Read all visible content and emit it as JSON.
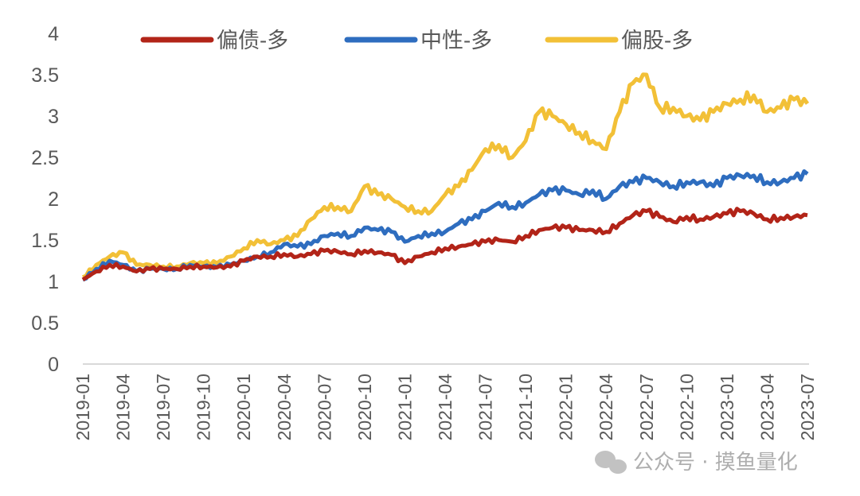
{
  "chart_data": {
    "type": "line",
    "title": "",
    "xlabel": "",
    "ylabel": "",
    "ylim": [
      0,
      4
    ],
    "yticks": [
      "0",
      "0.5",
      "1",
      "1.5",
      "2",
      "2.5",
      "3",
      "3.5",
      "4"
    ],
    "x_tick_labels": [
      "2019-01",
      "2019-04",
      "2019-07",
      "2019-10",
      "2020-01",
      "2020-04",
      "2020-07",
      "2020-10",
      "2021-01",
      "2021-04",
      "2021-07",
      "2021-10",
      "2022-01",
      "2022-04",
      "2022-07",
      "2022-10",
      "2023-01",
      "2023-04",
      "2023-07"
    ],
    "x_start": "2019-01",
    "x_frequency": "monthly",
    "grid": false,
    "legend_position": "top",
    "series": [
      {
        "name": "偏债-多",
        "color": "#B22418",
        "values": [
          1.02,
          1.12,
          1.2,
          1.18,
          1.12,
          1.15,
          1.15,
          1.15,
          1.18,
          1.18,
          1.17,
          1.18,
          1.25,
          1.3,
          1.3,
          1.33,
          1.3,
          1.33,
          1.37,
          1.36,
          1.33,
          1.37,
          1.35,
          1.32,
          1.22,
          1.3,
          1.35,
          1.4,
          1.42,
          1.45,
          1.48,
          1.5,
          1.48,
          1.55,
          1.62,
          1.65,
          1.65,
          1.62,
          1.62,
          1.6,
          1.7,
          1.8,
          1.85,
          1.78,
          1.72,
          1.78,
          1.75,
          1.78,
          1.82,
          1.85,
          1.82,
          1.75,
          1.77,
          1.78,
          1.8
        ]
      },
      {
        "name": "中性-多",
        "color": "#2E6DBF",
        "values": [
          1.02,
          1.15,
          1.25,
          1.2,
          1.12,
          1.15,
          1.15,
          1.15,
          1.2,
          1.18,
          1.17,
          1.2,
          1.25,
          1.3,
          1.35,
          1.45,
          1.42,
          1.45,
          1.55,
          1.58,
          1.55,
          1.65,
          1.62,
          1.6,
          1.48,
          1.55,
          1.58,
          1.6,
          1.7,
          1.75,
          1.85,
          1.95,
          1.9,
          1.95,
          2.05,
          2.1,
          2.1,
          2.05,
          2.1,
          2.0,
          2.15,
          2.2,
          2.25,
          2.2,
          2.15,
          2.2,
          2.2,
          2.15,
          2.25,
          2.28,
          2.28,
          2.2,
          2.2,
          2.25,
          2.3
        ]
      },
      {
        "name": "偏股-多",
        "color": "#F2C037",
        "values": [
          1.05,
          1.2,
          1.3,
          1.35,
          1.2,
          1.2,
          1.18,
          1.18,
          1.22,
          1.22,
          1.22,
          1.3,
          1.4,
          1.5,
          1.45,
          1.5,
          1.55,
          1.75,
          1.9,
          1.9,
          1.85,
          2.15,
          2.05,
          2.0,
          1.9,
          1.85,
          1.85,
          2.05,
          2.15,
          2.35,
          2.6,
          2.65,
          2.5,
          2.7,
          3.05,
          3.0,
          2.9,
          2.8,
          2.7,
          2.6,
          3.05,
          3.4,
          3.5,
          3.1,
          3.1,
          3.0,
          2.95,
          3.05,
          3.15,
          3.2,
          3.25,
          3.05,
          3.1,
          3.2,
          3.15
        ]
      }
    ]
  },
  "watermark": "公众号 · 摸鱼量化"
}
